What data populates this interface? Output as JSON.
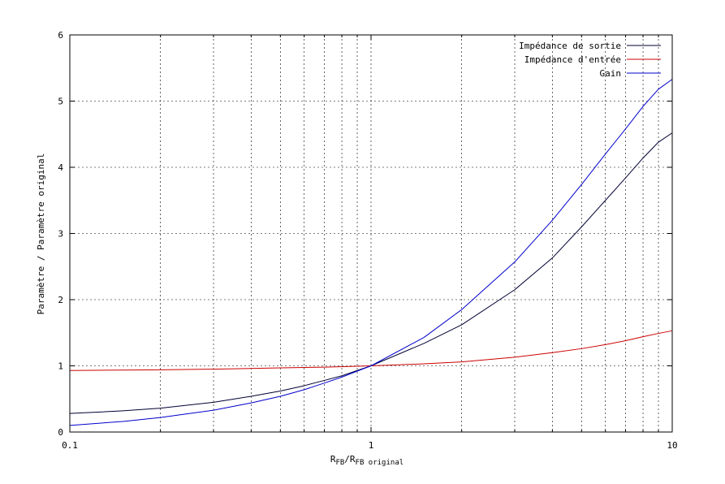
{
  "chart_data": {
    "type": "line",
    "x_scale": "log",
    "xlim": [
      0.1,
      10
    ],
    "ylim": [
      0,
      6
    ],
    "grid": true,
    "legend_position": "top-right",
    "xlabel": {
      "main1": "R",
      "sub1": "FB",
      "slash": "/R",
      "sub2": "FB original"
    },
    "ylabel": "Paramètre / Paramètre original",
    "x_ticks": [
      {
        "value": 0.1,
        "label": "0.1"
      },
      {
        "value": 1,
        "label": "1"
      },
      {
        "value": 10,
        "label": "10"
      }
    ],
    "y_ticks": [
      {
        "value": 0,
        "label": "0"
      },
      {
        "value": 1,
        "label": "1"
      },
      {
        "value": 2,
        "label": "2"
      },
      {
        "value": 3,
        "label": "3"
      },
      {
        "value": 4,
        "label": "4"
      },
      {
        "value": 5,
        "label": "5"
      },
      {
        "value": 6,
        "label": "6"
      }
    ],
    "series": [
      {
        "name": "Impédance de sortie",
        "color": "#000033",
        "x": [
          0.1,
          0.15,
          0.2,
          0.3,
          0.4,
          0.5,
          0.6,
          0.7,
          0.8,
          0.9,
          1,
          1.5,
          2,
          3,
          4,
          5,
          6,
          7,
          8,
          9,
          10
        ],
        "y": [
          0.28,
          0.32,
          0.36,
          0.45,
          0.54,
          0.62,
          0.7,
          0.78,
          0.85,
          0.93,
          1.0,
          1.34,
          1.62,
          2.15,
          2.63,
          3.1,
          3.5,
          3.84,
          4.14,
          4.38,
          4.52
        ]
      },
      {
        "name": "Impédance d'entrée",
        "color": "#cc0000",
        "x": [
          0.1,
          0.2,
          0.3,
          0.5,
          0.7,
          1,
          1.5,
          2,
          3,
          4,
          5,
          6,
          7,
          8,
          9,
          10
        ],
        "y": [
          0.93,
          0.94,
          0.95,
          0.97,
          0.98,
          1.0,
          1.03,
          1.06,
          1.13,
          1.2,
          1.26,
          1.32,
          1.38,
          1.44,
          1.49,
          1.53
        ]
      },
      {
        "name": "Gain",
        "color": "#0000cc",
        "x": [
          0.1,
          0.15,
          0.2,
          0.3,
          0.4,
          0.5,
          0.6,
          0.7,
          0.8,
          0.9,
          1,
          1.5,
          2,
          3,
          4,
          5,
          6,
          7,
          8,
          9,
          10
        ],
        "y": [
          0.1,
          0.16,
          0.22,
          0.33,
          0.44,
          0.54,
          0.64,
          0.74,
          0.83,
          0.92,
          1.0,
          1.43,
          1.85,
          2.57,
          3.2,
          3.74,
          4.2,
          4.58,
          4.92,
          5.18,
          5.33
        ]
      }
    ]
  }
}
